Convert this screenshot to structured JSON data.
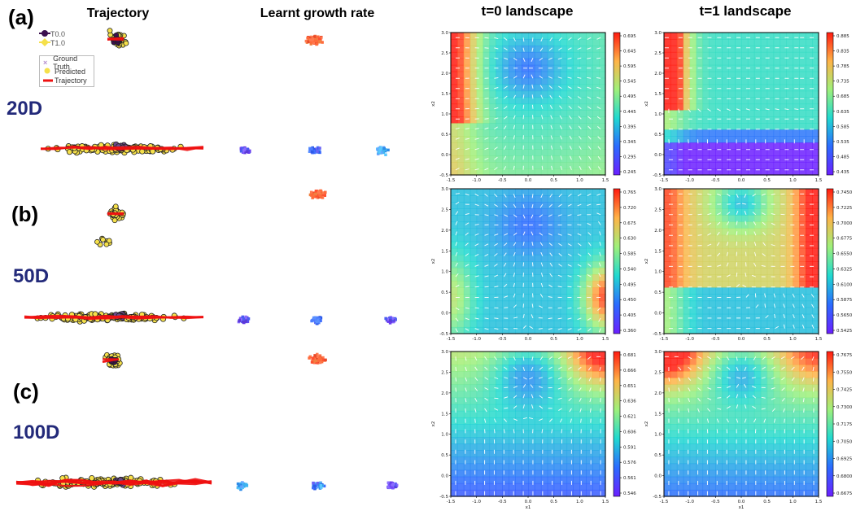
{
  "titles": {
    "trajectory": "Trajectory",
    "growth": "Learnt growth rate",
    "t0": "t=0 landscape",
    "t1": "t=1 landscape"
  },
  "panels": {
    "a": "(a)",
    "b": "(b)",
    "c": "(c)"
  },
  "dims": {
    "d20": "20D",
    "d50": "50D",
    "d100": "100D"
  },
  "legend_time": {
    "t0": "T0.0",
    "t1": "T1.0"
  },
  "legend_traj": {
    "gt": "Ground Truth",
    "pred": "Predicted",
    "traj": "Trajectory"
  },
  "colors": {
    "t0": "#3b0f4f",
    "t1": "#f5e04a",
    "traj": "#ee1111",
    "ground_truth": "#b48fd0"
  },
  "chart_data": [
    {
      "type": "heatmap",
      "title": "t=0 landscape",
      "row": "20D",
      "xlabel": "x1",
      "ylabel": "x2",
      "xlim": [
        -1.5,
        1.5
      ],
      "ylim": [
        -0.5,
        3.0
      ],
      "xticks": [
        "-1.5",
        "-1.0",
        "-0.5",
        "0.0",
        "0.5",
        "1.0",
        "1.5"
      ],
      "yticks": [
        "-0.5",
        "0.0",
        "0.5",
        "1.0",
        "1.5",
        "2.0",
        "2.5",
        "3.0"
      ],
      "colorbar_ticks": [
        "0.245",
        "0.295",
        "0.345",
        "0.395",
        "0.445",
        "0.495",
        "0.545",
        "0.595",
        "0.645",
        "0.695"
      ],
      "colormap": "rainbow",
      "grid": false
    },
    {
      "type": "heatmap",
      "title": "t=1 landscape",
      "row": "20D",
      "xlabel": "x1",
      "ylabel": "x2",
      "xlim": [
        -1.5,
        1.5
      ],
      "ylim": [
        -0.5,
        3.0
      ],
      "xticks": [
        "-1.5",
        "-1.0",
        "-0.5",
        "0.0",
        "0.5",
        "1.0",
        "1.5"
      ],
      "yticks": [
        "-0.5",
        "0.0",
        "0.5",
        "1.0",
        "1.5",
        "2.0",
        "2.5",
        "3.0"
      ],
      "colorbar_ticks": [
        "0.435",
        "0.485",
        "0.535",
        "0.585",
        "0.635",
        "0.685",
        "0.735",
        "0.785",
        "0.835",
        "0.885"
      ],
      "colormap": "rainbow",
      "grid": false
    },
    {
      "type": "heatmap",
      "title": "t=0 landscape",
      "row": "50D",
      "xlabel": "x1",
      "ylabel": "x2",
      "xlim": [
        -1.5,
        1.5
      ],
      "ylim": [
        -0.5,
        3.0
      ],
      "xticks": [
        "-1.5",
        "-1.0",
        "-0.5",
        "0.0",
        "0.5",
        "1.0",
        "1.5"
      ],
      "yticks": [
        "-0.5",
        "0.0",
        "0.5",
        "1.0",
        "1.5",
        "2.0",
        "2.5",
        "3.0"
      ],
      "colorbar_ticks": [
        "0.360",
        "0.405",
        "0.450",
        "0.495",
        "0.540",
        "0.585",
        "0.630",
        "0.675",
        "0.720",
        "0.765"
      ],
      "colormap": "rainbow",
      "grid": false
    },
    {
      "type": "heatmap",
      "title": "t=1 landscape",
      "row": "50D",
      "xlabel": "x1",
      "ylabel": "x2",
      "xlim": [
        -1.5,
        1.5
      ],
      "ylim": [
        -0.5,
        3.0
      ],
      "xticks": [
        "-1.5",
        "-1.0",
        "-0.5",
        "0.0",
        "0.5",
        "1.0",
        "1.5"
      ],
      "yticks": [
        "-0.5",
        "0.0",
        "0.5",
        "1.0",
        "1.5",
        "2.0",
        "2.5",
        "3.0"
      ],
      "colorbar_ticks": [
        "0.5425",
        "0.5650",
        "0.5875",
        "0.6100",
        "0.6325",
        "0.6550",
        "0.6775",
        "0.7000",
        "0.7225",
        "0.7450"
      ],
      "colormap": "rainbow",
      "grid": false
    },
    {
      "type": "heatmap",
      "title": "t=0 landscape",
      "row": "100D",
      "xlabel": "x1",
      "ylabel": "x2",
      "xlim": [
        -1.5,
        1.5
      ],
      "ylim": [
        -0.5,
        3.0
      ],
      "xticks": [
        "-1.5",
        "-1.0",
        "-0.5",
        "0.0",
        "0.5",
        "1.0",
        "1.5"
      ],
      "yticks": [
        "-0.5",
        "0.0",
        "0.5",
        "1.0",
        "1.5",
        "2.0",
        "2.5",
        "3.0"
      ],
      "colorbar_ticks": [
        "0.546",
        "0.561",
        "0.576",
        "0.591",
        "0.606",
        "0.621",
        "0.636",
        "0.651",
        "0.666",
        "0.681"
      ],
      "colormap": "rainbow",
      "grid": false
    },
    {
      "type": "heatmap",
      "title": "t=1 landscape",
      "row": "100D",
      "xlabel": "x1",
      "ylabel": "x2",
      "xlim": [
        -1.5,
        1.5
      ],
      "ylim": [
        -0.5,
        3.0
      ],
      "xticks": [
        "-1.5",
        "-1.0",
        "-0.5",
        "0.0",
        "0.5",
        "1.0",
        "1.5"
      ],
      "yticks": [
        "-0.5",
        "0.0",
        "0.5",
        "1.0",
        "1.5",
        "2.0",
        "2.5",
        "3.0"
      ],
      "colorbar_ticks": [
        "0.6675",
        "0.6800",
        "0.6925",
        "0.7050",
        "0.7175",
        "0.7300",
        "0.7425",
        "0.7550",
        "0.7675"
      ],
      "colormap": "rainbow",
      "grid": false
    }
  ]
}
